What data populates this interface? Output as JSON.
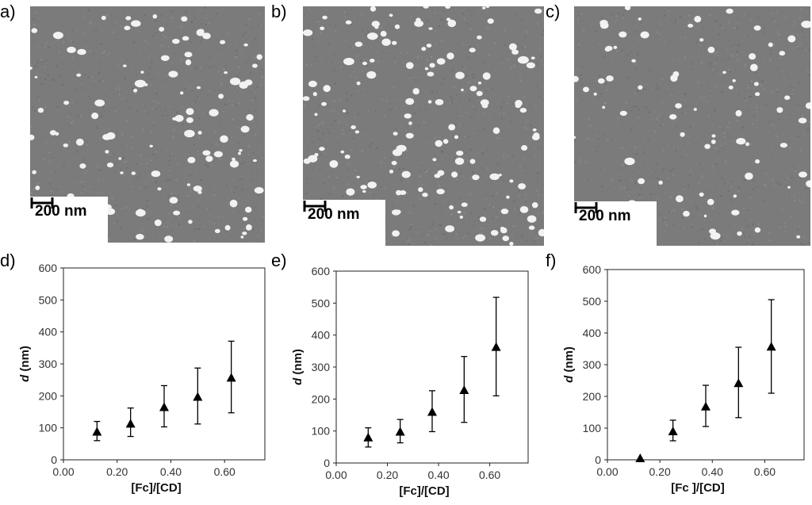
{
  "panels": {
    "a": {
      "label": "a)",
      "scale_text": "200 nm"
    },
    "b": {
      "label": "b)",
      "scale_text": "200 nm"
    },
    "c": {
      "label": "c)",
      "scale_text": "200 nm"
    },
    "d": {
      "label": "d)"
    },
    "e": {
      "label": "e)"
    },
    "f": {
      "label": "f)"
    }
  },
  "chart_data": [
    {
      "type": "scatter",
      "panel": "d",
      "xlabel": "[Fc]/[CD]",
      "ylabel_italic": "d",
      "ylabel_unit": " (nm)",
      "xlim": [
        0,
        0.75
      ],
      "ylim": [
        0,
        600
      ],
      "xticks": [
        "0.00",
        "0.20",
        "0.40",
        "0.60"
      ],
      "yticks": [
        "0",
        "100",
        "200",
        "300",
        "400",
        "500",
        "600"
      ],
      "points": [
        {
          "x": 0.125,
          "y": 88,
          "ylow": 60,
          "yhigh": 120
        },
        {
          "x": 0.25,
          "y": 113,
          "ylow": 73,
          "yhigh": 162
        },
        {
          "x": 0.375,
          "y": 165,
          "ylow": 103,
          "yhigh": 232
        },
        {
          "x": 0.5,
          "y": 197,
          "ylow": 112,
          "yhigh": 287
        },
        {
          "x": 0.625,
          "y": 257,
          "ylow": 147,
          "yhigh": 371
        }
      ],
      "marker": "triangle",
      "grid": false
    },
    {
      "type": "scatter",
      "panel": "e",
      "xlabel": "[Fc]/[CD]",
      "ylabel_italic": "d",
      "ylabel_unit": " (nm)",
      "xlim": [
        0,
        0.75
      ],
      "ylim": [
        0,
        600
      ],
      "xticks": [
        "0.00",
        "0.20",
        "0.40",
        "0.60"
      ],
      "yticks": [
        "0",
        "100",
        "200",
        "300",
        "400",
        "500",
        "600"
      ],
      "points": [
        {
          "x": 0.125,
          "y": 80,
          "ylow": 50,
          "yhigh": 110
        },
        {
          "x": 0.25,
          "y": 98,
          "ylow": 63,
          "yhigh": 136
        },
        {
          "x": 0.375,
          "y": 160,
          "ylow": 98,
          "yhigh": 226
        },
        {
          "x": 0.5,
          "y": 228,
          "ylow": 127,
          "yhigh": 333
        },
        {
          "x": 0.625,
          "y": 363,
          "ylow": 210,
          "yhigh": 518
        }
      ],
      "marker": "triangle",
      "grid": false
    },
    {
      "type": "scatter",
      "panel": "f",
      "xlabel": "[Fc ]/[CD]",
      "ylabel_italic": "d",
      "ylabel_unit": " (nm)",
      "xlim": [
        0,
        0.75
      ],
      "ylim": [
        0,
        600
      ],
      "xticks": [
        "0.00",
        "0.20",
        "0.40",
        "0.60"
      ],
      "yticks": [
        "0",
        "100",
        "200",
        "300",
        "400",
        "500",
        "600"
      ],
      "points": [
        {
          "x": 0.125,
          "y": 5,
          "ylow": 5,
          "yhigh": 5
        },
        {
          "x": 0.25,
          "y": 90,
          "ylow": 60,
          "yhigh": 125
        },
        {
          "x": 0.375,
          "y": 168,
          "ylow": 105,
          "yhigh": 235
        },
        {
          "x": 0.5,
          "y": 242,
          "ylow": 133,
          "yhigh": 355
        },
        {
          "x": 0.625,
          "y": 357,
          "ylow": 210,
          "yhigh": 505
        }
      ],
      "marker": "triangle",
      "grid": false
    }
  ]
}
